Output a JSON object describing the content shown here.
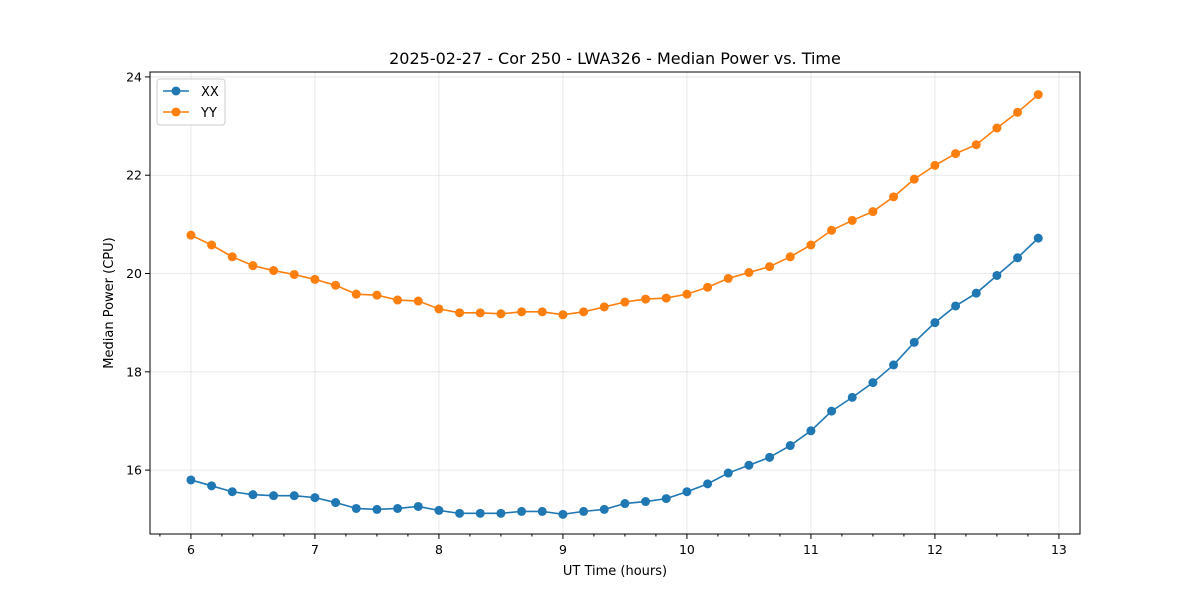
{
  "chart_data": {
    "type": "line",
    "title": "2025-02-27 - Cor 250 - LWA326 - Median Power vs. Time",
    "xlabel": "UT Time (hours)",
    "ylabel": "Median Power (CPU)",
    "xlim": [
      5.67,
      13.17
    ],
    "ylim": [
      14.7,
      24.1
    ],
    "xticks": [
      6,
      7,
      8,
      9,
      10,
      11,
      12,
      13
    ],
    "yticks": [
      16,
      18,
      20,
      22,
      24
    ],
    "x_minor_step": 0.25,
    "grid": true,
    "legend_position": "upper-left",
    "x": [
      6.0,
      6.1667,
      6.3333,
      6.5,
      6.6667,
      6.8333,
      7.0,
      7.1667,
      7.3333,
      7.5,
      7.6667,
      7.8333,
      8.0,
      8.1667,
      8.3333,
      8.5,
      8.6667,
      8.8333,
      9.0,
      9.1667,
      9.3333,
      9.5,
      9.6667,
      9.8333,
      10.0,
      10.1667,
      10.3333,
      10.5,
      10.6667,
      10.8333,
      11.0,
      11.1667,
      11.3333,
      11.5,
      11.6667,
      11.8333,
      12.0,
      12.1667,
      12.3333,
      12.5,
      12.6667,
      12.8333
    ],
    "series": [
      {
        "name": "XX",
        "color": "#1f77b4",
        "values": [
          15.8,
          15.68,
          15.56,
          15.5,
          15.48,
          15.48,
          15.44,
          15.34,
          15.22,
          15.2,
          15.22,
          15.26,
          15.18,
          15.12,
          15.12,
          15.12,
          15.16,
          15.16,
          15.1,
          15.16,
          15.2,
          15.32,
          15.36,
          15.42,
          15.56,
          15.72,
          15.94,
          16.1,
          16.26,
          16.5,
          16.8,
          17.2,
          17.48,
          17.78,
          18.14,
          18.6,
          19.0,
          19.34,
          19.6,
          19.96,
          20.32,
          20.72
        ]
      },
      {
        "name": "YY",
        "color": "#ff7f0e",
        "values": [
          20.78,
          20.58,
          20.34,
          20.16,
          20.06,
          19.98,
          19.88,
          19.76,
          19.58,
          19.56,
          19.46,
          19.44,
          19.28,
          19.2,
          19.2,
          19.18,
          19.22,
          19.22,
          19.16,
          19.22,
          19.32,
          19.42,
          19.48,
          19.5,
          19.58,
          19.72,
          19.9,
          20.02,
          20.14,
          20.34,
          20.58,
          20.88,
          21.08,
          21.26,
          21.56,
          21.92,
          22.2,
          22.44,
          22.62,
          22.96,
          23.28,
          23.64
        ]
      }
    ]
  }
}
